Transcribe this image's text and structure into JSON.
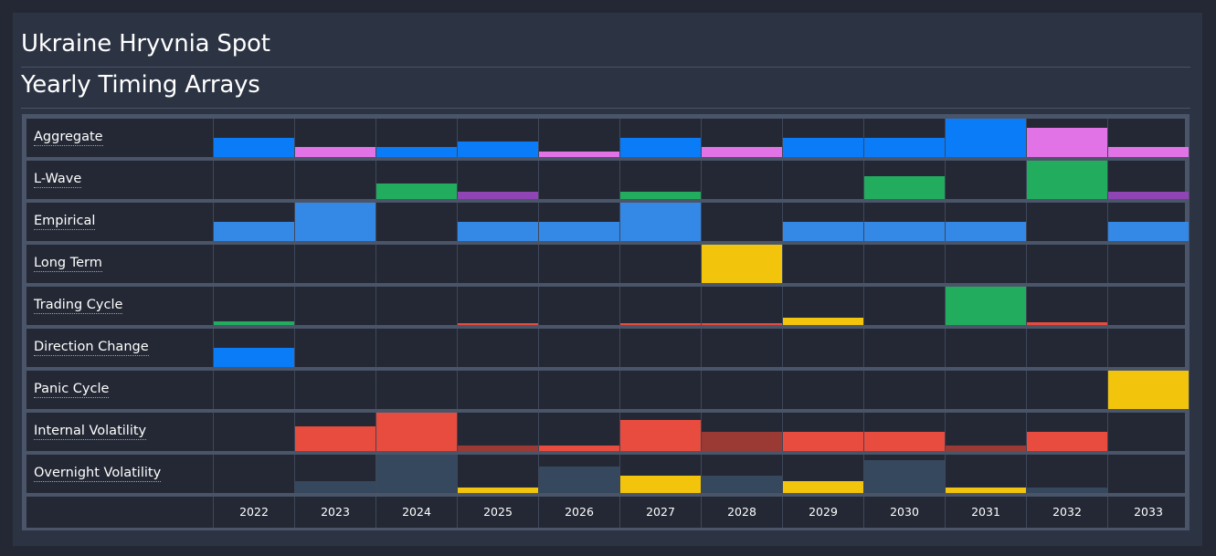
{
  "header": {
    "title": "Ukraine Hryvnia Spot",
    "subtitle": "Yearly Timing Arrays"
  },
  "colors": {
    "blue": "#0a7cf7",
    "lightblue": "#3589e6",
    "pink": "#e173e6",
    "green": "#22ac5e",
    "purple": "#8f45b4",
    "yellow": "#f2c40c",
    "red": "#e84c3e",
    "darkred": "#9b3a34",
    "slate": "#35485d"
  },
  "chart_data": {
    "type": "heatmap",
    "years": [
      "2022",
      "2023",
      "2024",
      "2025",
      "2026",
      "2027",
      "2028",
      "2029",
      "2030",
      "2031",
      "2032",
      "2033"
    ],
    "rows": [
      {
        "label": "Aggregate",
        "cells": [
          [
            0.5,
            "blue"
          ],
          [
            0.25,
            "pink"
          ],
          [
            0.25,
            "blue"
          ],
          [
            0.4,
            "blue"
          ],
          [
            0.15,
            "pink"
          ],
          [
            0.5,
            "blue"
          ],
          [
            0.25,
            "pink"
          ],
          [
            0.5,
            "blue"
          ],
          [
            0.5,
            "blue"
          ],
          [
            1.0,
            "blue"
          ],
          [
            0.75,
            "pink"
          ],
          [
            0.25,
            "pink"
          ]
        ]
      },
      {
        "label": "L-Wave",
        "cells": [
          [
            0,
            "green"
          ],
          [
            0,
            "green"
          ],
          [
            0.4,
            "green"
          ],
          [
            0.2,
            "purple"
          ],
          [
            0,
            "green"
          ],
          [
            0.2,
            "green"
          ],
          [
            0,
            "green"
          ],
          [
            0,
            "green"
          ],
          [
            0.6,
            "green"
          ],
          [
            0,
            "green"
          ],
          [
            1.0,
            "green"
          ],
          [
            0.2,
            "purple"
          ]
        ]
      },
      {
        "label": "Empirical",
        "cells": [
          [
            0.5,
            "lightblue"
          ],
          [
            1.0,
            "lightblue"
          ],
          [
            0,
            "lightblue"
          ],
          [
            0.5,
            "lightblue"
          ],
          [
            0.5,
            "lightblue"
          ],
          [
            1.0,
            "lightblue"
          ],
          [
            0,
            "lightblue"
          ],
          [
            0.5,
            "lightblue"
          ],
          [
            0.5,
            "lightblue"
          ],
          [
            0.5,
            "lightblue"
          ],
          [
            0,
            "lightblue"
          ],
          [
            0.5,
            "lightblue"
          ]
        ]
      },
      {
        "label": "Long Term",
        "cells": [
          [
            0,
            "yellow"
          ],
          [
            0,
            "yellow"
          ],
          [
            0,
            "yellow"
          ],
          [
            0,
            "yellow"
          ],
          [
            0,
            "yellow"
          ],
          [
            0,
            "yellow"
          ],
          [
            1.0,
            "yellow"
          ],
          [
            0,
            "yellow"
          ],
          [
            0,
            "yellow"
          ],
          [
            0,
            "yellow"
          ],
          [
            0,
            "yellow"
          ],
          [
            0,
            "yellow"
          ]
        ]
      },
      {
        "label": "Trading Cycle",
        "cells": [
          [
            0.1,
            "green"
          ],
          [
            0,
            "green"
          ],
          [
            0,
            "green"
          ],
          [
            0.05,
            "red"
          ],
          [
            0,
            "red"
          ],
          [
            0.05,
            "red"
          ],
          [
            0.05,
            "red"
          ],
          [
            0.2,
            "yellow"
          ],
          [
            0,
            "green"
          ],
          [
            1.0,
            "green"
          ],
          [
            0.08,
            "red"
          ],
          [
            0,
            "red"
          ]
        ]
      },
      {
        "label": "Direction Change",
        "cells": [
          [
            0.5,
            "blue"
          ],
          [
            0,
            "blue"
          ],
          [
            0,
            "blue"
          ],
          [
            0,
            "blue"
          ],
          [
            0,
            "blue"
          ],
          [
            0,
            "blue"
          ],
          [
            0,
            "blue"
          ],
          [
            0,
            "blue"
          ],
          [
            0,
            "blue"
          ],
          [
            0,
            "blue"
          ],
          [
            0,
            "blue"
          ],
          [
            0,
            "blue"
          ]
        ]
      },
      {
        "label": "Panic Cycle",
        "cells": [
          [
            0,
            "yellow"
          ],
          [
            0,
            "yellow"
          ],
          [
            0,
            "yellow"
          ],
          [
            0,
            "yellow"
          ],
          [
            0,
            "yellow"
          ],
          [
            0,
            "yellow"
          ],
          [
            0,
            "yellow"
          ],
          [
            0,
            "yellow"
          ],
          [
            0,
            "yellow"
          ],
          [
            0,
            "yellow"
          ],
          [
            0,
            "yellow"
          ],
          [
            1.0,
            "yellow"
          ]
        ]
      },
      {
        "label": "Internal Volatility",
        "cells": [
          [
            0,
            "red"
          ],
          [
            0.65,
            "red"
          ],
          [
            1.0,
            "red"
          ],
          [
            0.15,
            "darkred"
          ],
          [
            0.15,
            "red"
          ],
          [
            0.8,
            "red"
          ],
          [
            0.5,
            "darkred"
          ],
          [
            0.5,
            "red"
          ],
          [
            0.5,
            "red"
          ],
          [
            0.15,
            "darkred"
          ],
          [
            0.5,
            "red"
          ],
          [
            0,
            "red"
          ]
        ]
      },
      {
        "label": "Overnight Volatility",
        "cells": [
          [
            0,
            "slate"
          ],
          [
            0.3,
            "slate"
          ],
          [
            1.0,
            "slate"
          ],
          [
            0.15,
            "yellow"
          ],
          [
            0.7,
            "slate"
          ],
          [
            0.45,
            "yellow"
          ],
          [
            0.45,
            "slate"
          ],
          [
            0.3,
            "yellow"
          ],
          [
            0.85,
            "slate"
          ],
          [
            0.15,
            "yellow"
          ],
          [
            0.15,
            "slate"
          ],
          [
            0,
            "slate"
          ]
        ]
      }
    ]
  }
}
